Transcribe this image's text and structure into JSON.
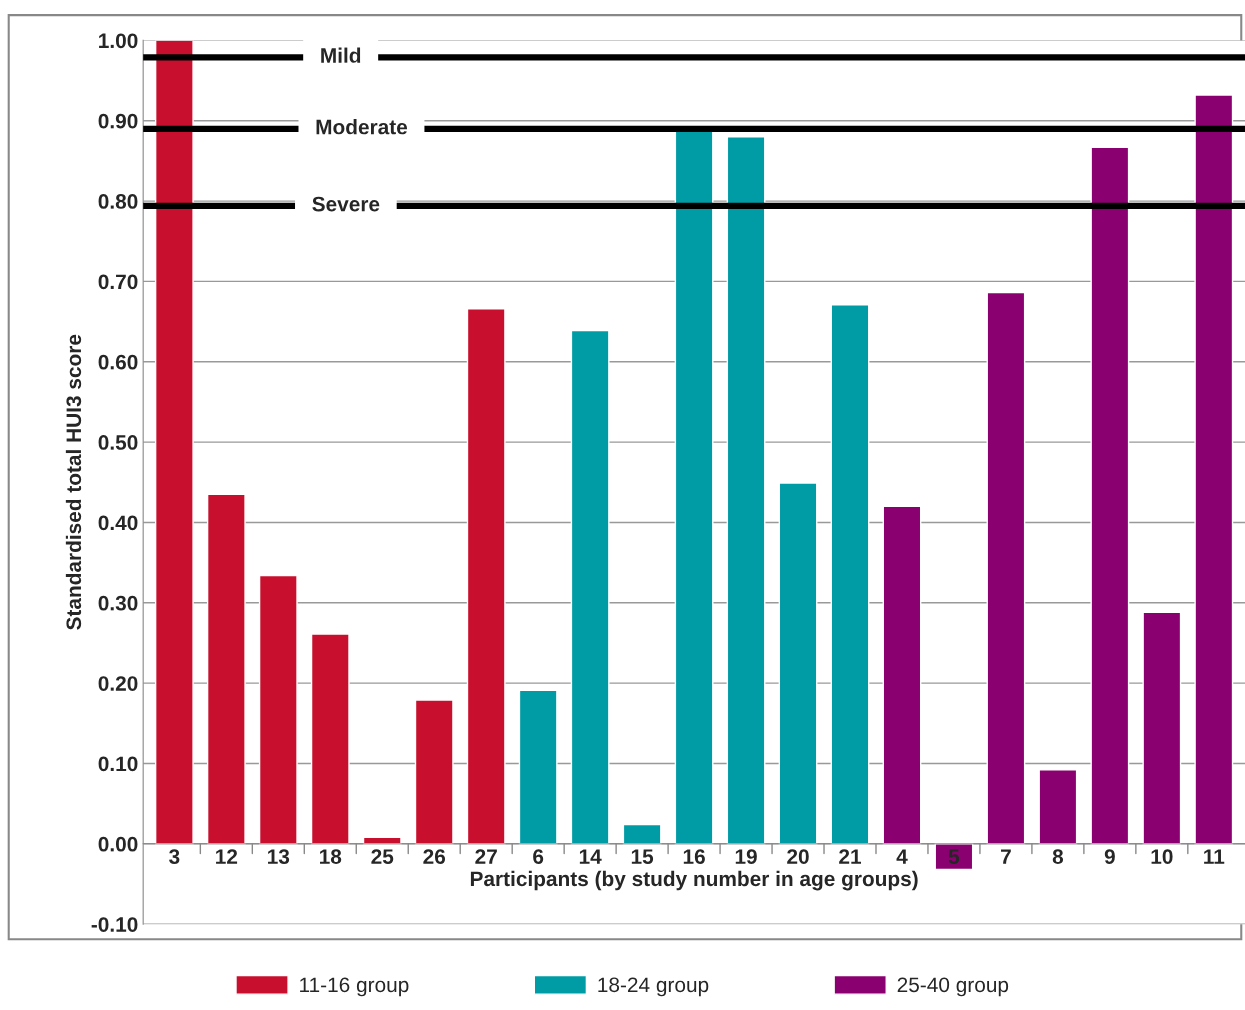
{
  "chart_data": {
    "type": "bar",
    "xlabel": "Participants (by study number in age groups)",
    "ylabel": "Standardised total HUI3 score",
    "categories": [
      "3",
      "12",
      "13",
      "18",
      "25",
      "26",
      "27",
      "6",
      "14",
      "15",
      "16",
      "19",
      "20",
      "21",
      "4",
      "5",
      "7",
      "8",
      "9",
      "10",
      "11"
    ],
    "series": [
      {
        "name": "11-16 group",
        "color": "#c8102e",
        "values": [
          1.0,
          0.435,
          0.334,
          0.261,
          0.008,
          0.179,
          0.666,
          null,
          null,
          null,
          null,
          null,
          null,
          null,
          null,
          null,
          null,
          null,
          null,
          null,
          null
        ]
      },
      {
        "name": "18-24 group",
        "color": "#009ca6",
        "values": [
          null,
          null,
          null,
          null,
          null,
          null,
          null,
          0.191,
          0.639,
          0.024,
          0.89,
          0.88,
          0.449,
          0.671,
          null,
          null,
          null,
          null,
          null,
          null,
          null
        ]
      },
      {
        "name": "25-40 group",
        "color": "#8b0070",
        "values": [
          null,
          null,
          null,
          null,
          null,
          null,
          null,
          null,
          null,
          null,
          null,
          null,
          null,
          null,
          0.42,
          -0.032,
          0.686,
          0.092,
          0.867,
          0.288,
          0.932
        ]
      }
    ],
    "ylim": [
      -0.1,
      1.0
    ],
    "yticks": [
      {
        "value": -0.1,
        "label": "-0.10"
      },
      {
        "value": 0,
        "label": "0.00"
      },
      {
        "value": 0.1,
        "label": "0.10"
      },
      {
        "value": 0.2,
        "label": "0.20"
      },
      {
        "value": 0.3,
        "label": "0.30"
      },
      {
        "value": 0.4,
        "label": "0.40"
      },
      {
        "value": 0.5,
        "label": "0.50"
      },
      {
        "value": 0.6,
        "label": "0.60"
      },
      {
        "value": 0.7,
        "label": "0.70"
      },
      {
        "value": 0.8,
        "label": "0.80"
      },
      {
        "value": 0.9,
        "label": "0.90"
      },
      {
        "value": 1.0,
        "label": "1.00"
      }
    ],
    "ref_lines": [
      {
        "axis": "y",
        "value": 0.979,
        "label": "Mild",
        "color": "#000000"
      },
      {
        "axis": "y",
        "value": 0.89,
        "label": "Moderate",
        "color": "#000000"
      },
      {
        "axis": "y",
        "value": 0.794,
        "label": "Severe",
        "color": "#000000"
      }
    ],
    "grid": "y",
    "legend": "bottom"
  }
}
